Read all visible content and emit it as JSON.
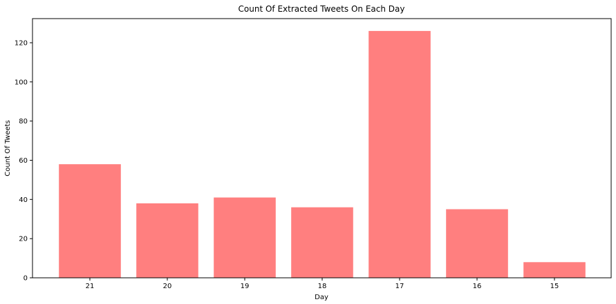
{
  "chart_data": {
    "type": "bar",
    "title": "Count Of Extracted Tweets On Each Day",
    "xlabel": "Day",
    "ylabel": "Count Of Tweets",
    "categories": [
      "21",
      "20",
      "19",
      "18",
      "17",
      "16",
      "15"
    ],
    "values": [
      58,
      38,
      41,
      36,
      126,
      35,
      8
    ],
    "ylim": [
      0,
      132.3
    ],
    "yticks": [
      0,
      20,
      40,
      60,
      80,
      100,
      120
    ],
    "grid": false,
    "legend": "none",
    "bar_color": "#ff7f7f",
    "axis_color": "#000000"
  }
}
